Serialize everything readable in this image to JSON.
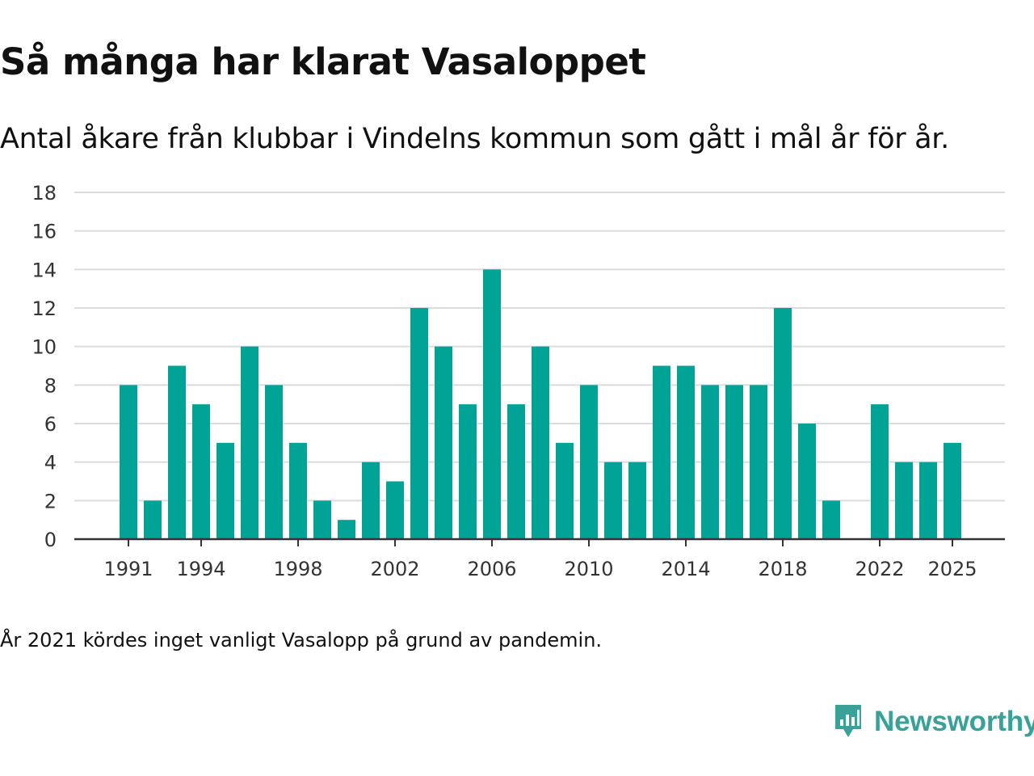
{
  "chart_data": {
    "type": "bar",
    "title": "Så många har klarat Vasaloppet",
    "subtitle": "Antal åkare från klubbar i Vindelns kommun som gått i mål år för år.",
    "note": "År 2021 kördes inget vanligt Vasalopp på grund av pandemin.",
    "categories": [
      1991,
      1992,
      1993,
      1994,
      1995,
      1996,
      1997,
      1998,
      1999,
      2000,
      2001,
      2002,
      2003,
      2004,
      2005,
      2006,
      2007,
      2008,
      2009,
      2010,
      2011,
      2012,
      2013,
      2014,
      2015,
      2016,
      2017,
      2018,
      2019,
      2020,
      2021,
      2022,
      2023,
      2024,
      2025
    ],
    "values": [
      8,
      2,
      9,
      7,
      5,
      10,
      8,
      5,
      2,
      1,
      4,
      3,
      12,
      10,
      7,
      14,
      7,
      10,
      5,
      8,
      4,
      4,
      9,
      9,
      8,
      8,
      8,
      12,
      6,
      2,
      null,
      7,
      4,
      4,
      5
    ],
    "x_tick_labels": [
      "1991",
      "1994",
      "1998",
      "2002",
      "2006",
      "2010",
      "2014",
      "2018",
      "2022",
      "2025"
    ],
    "y_tick_labels": [
      "0",
      "2",
      "4",
      "6",
      "8",
      "10",
      "12",
      "14",
      "16",
      "18"
    ],
    "ylim": [
      0,
      18
    ],
    "grid": true,
    "bar_color": "#00a396",
    "xlabel": "",
    "ylabel": ""
  },
  "branding": {
    "name": "Newsworthy",
    "color": "#3aa198",
    "icon": "newsworthy-logo-icon"
  }
}
